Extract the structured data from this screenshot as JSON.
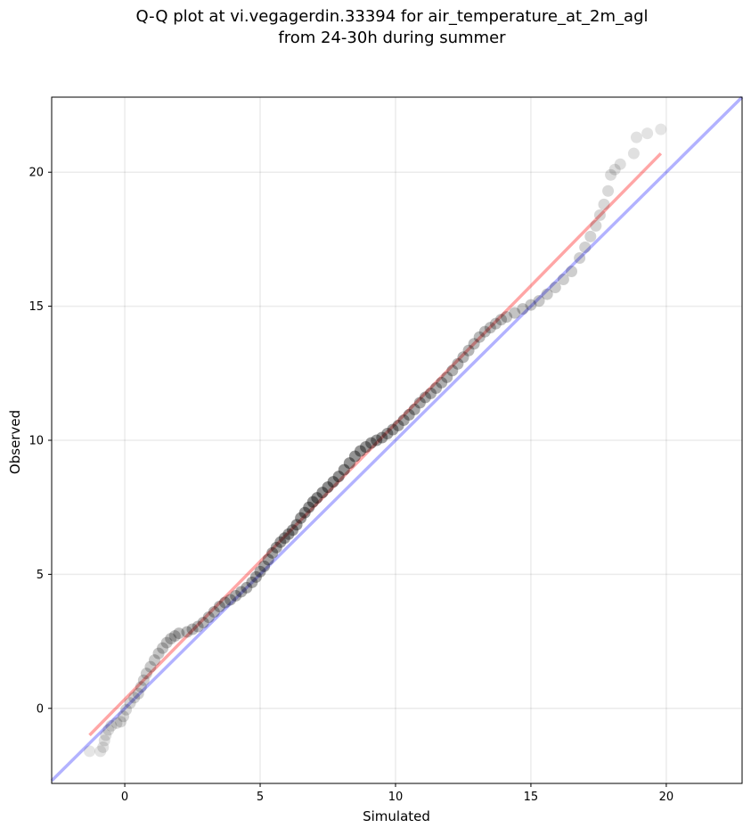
{
  "chart_data": {
    "type": "scatter",
    "title_line1": "Q-Q plot at vi.vegagerdin.33394 for air_temperature_at_2m_agl",
    "title_line2": "from 24-30h during summer",
    "xlabel": "Simulated",
    "ylabel": "Observed",
    "xlim": [
      -2.7,
      22.8
    ],
    "ylim": [
      -2.8,
      22.8
    ],
    "x_ticks": [
      0,
      5,
      10,
      15,
      20
    ],
    "y_ticks": [
      0,
      5,
      10,
      15,
      20
    ],
    "grid": true,
    "identity_line": {
      "color": "#0000ff",
      "alpha": 0.3
    },
    "fit_line": {
      "color": "#ff0000",
      "alpha": 0.35,
      "from": [
        -1.3,
        -1.0
      ],
      "to": [
        19.8,
        20.7
      ]
    },
    "point_color": "#000000",
    "qq_points": [
      [
        -1.3,
        -1.6
      ],
      [
        -0.9,
        -1.6
      ],
      [
        -0.8,
        -1.45
      ],
      [
        -0.75,
        -1.2
      ],
      [
        -0.7,
        -1.0
      ],
      [
        -0.6,
        -0.8
      ],
      [
        -0.5,
        -0.65
      ],
      [
        -0.3,
        -0.55
      ],
      [
        -0.15,
        -0.5
      ],
      [
        -0.05,
        -0.3
      ],
      [
        0.05,
        -0.05
      ],
      [
        0.2,
        0.2
      ],
      [
        0.35,
        0.4
      ],
      [
        0.5,
        0.55
      ],
      [
        0.6,
        0.8
      ],
      [
        0.7,
        1.05
      ],
      [
        0.8,
        1.3
      ],
      [
        0.95,
        1.55
      ],
      [
        1.1,
        1.8
      ],
      [
        1.25,
        2.05
      ],
      [
        1.4,
        2.25
      ],
      [
        1.55,
        2.45
      ],
      [
        1.7,
        2.6
      ],
      [
        1.85,
        2.7
      ],
      [
        2.0,
        2.8
      ],
      [
        2.3,
        2.85
      ],
      [
        2.5,
        2.95
      ],
      [
        2.7,
        3.05
      ],
      [
        2.9,
        3.2
      ],
      [
        3.1,
        3.4
      ],
      [
        3.3,
        3.6
      ],
      [
        3.5,
        3.8
      ],
      [
        3.7,
        3.95
      ],
      [
        3.9,
        4.05
      ],
      [
        4.1,
        4.2
      ],
      [
        4.3,
        4.35
      ],
      [
        4.5,
        4.5
      ],
      [
        4.7,
        4.7
      ],
      [
        4.85,
        4.9
      ],
      [
        5.0,
        5.1
      ],
      [
        5.15,
        5.3
      ],
      [
        5.3,
        5.55
      ],
      [
        5.45,
        5.8
      ],
      [
        5.6,
        6.0
      ],
      [
        5.75,
        6.2
      ],
      [
        5.9,
        6.35
      ],
      [
        6.05,
        6.5
      ],
      [
        6.2,
        6.65
      ],
      [
        6.35,
        6.85
      ],
      [
        6.5,
        7.1
      ],
      [
        6.65,
        7.3
      ],
      [
        6.8,
        7.5
      ],
      [
        6.95,
        7.7
      ],
      [
        7.1,
        7.85
      ],
      [
        7.3,
        8.05
      ],
      [
        7.5,
        8.25
      ],
      [
        7.7,
        8.45
      ],
      [
        7.9,
        8.65
      ],
      [
        8.1,
        8.9
      ],
      [
        8.3,
        9.15
      ],
      [
        8.5,
        9.4
      ],
      [
        8.7,
        9.6
      ],
      [
        8.9,
        9.75
      ],
      [
        9.1,
        9.9
      ],
      [
        9.3,
        10.0
      ],
      [
        9.5,
        10.1
      ],
      [
        9.7,
        10.25
      ],
      [
        9.9,
        10.4
      ],
      [
        10.1,
        10.55
      ],
      [
        10.3,
        10.75
      ],
      [
        10.5,
        10.95
      ],
      [
        10.7,
        11.15
      ],
      [
        10.9,
        11.4
      ],
      [
        11.1,
        11.6
      ],
      [
        11.3,
        11.75
      ],
      [
        11.5,
        11.95
      ],
      [
        11.7,
        12.15
      ],
      [
        11.9,
        12.35
      ],
      [
        12.1,
        12.6
      ],
      [
        12.3,
        12.85
      ],
      [
        12.5,
        13.1
      ],
      [
        12.7,
        13.35
      ],
      [
        12.9,
        13.6
      ],
      [
        13.1,
        13.85
      ],
      [
        13.3,
        14.05
      ],
      [
        13.5,
        14.2
      ],
      [
        13.7,
        14.35
      ],
      [
        13.9,
        14.5
      ],
      [
        14.1,
        14.6
      ],
      [
        14.4,
        14.75
      ],
      [
        14.7,
        14.9
      ],
      [
        15.0,
        15.05
      ],
      [
        15.3,
        15.2
      ],
      [
        15.6,
        15.45
      ],
      [
        15.9,
        15.7
      ],
      [
        16.2,
        16.0
      ],
      [
        16.5,
        16.3
      ],
      [
        16.8,
        16.8
      ],
      [
        17.0,
        17.2
      ],
      [
        17.2,
        17.6
      ],
      [
        17.4,
        18.0
      ],
      [
        17.55,
        18.4
      ],
      [
        17.7,
        18.8
      ],
      [
        17.85,
        19.3
      ],
      [
        17.95,
        19.9
      ],
      [
        18.1,
        20.1
      ],
      [
        18.3,
        20.3
      ],
      [
        18.8,
        20.7
      ],
      [
        18.9,
        21.3
      ],
      [
        19.3,
        21.45
      ],
      [
        19.8,
        21.6
      ]
    ]
  }
}
